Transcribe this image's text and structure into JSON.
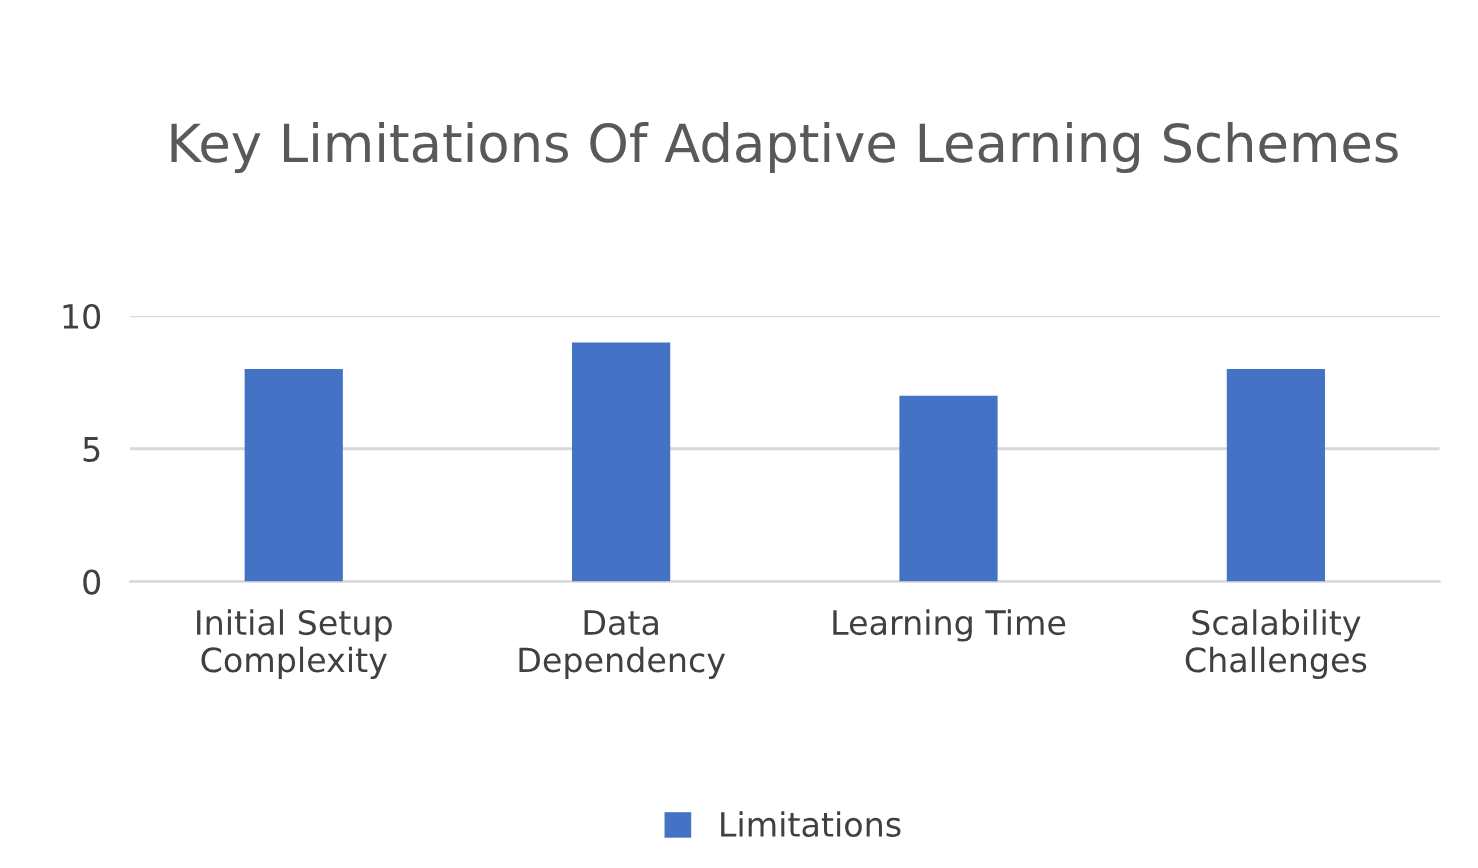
{
  "chart_data": {
    "type": "bar",
    "title": "Key Limitations Of Adaptive Learning Schemes",
    "categories": [
      "Initial Setup\nComplexity",
      "Data\nDependency",
      "Learning Time",
      "Scalability\nChallenges"
    ],
    "series": [
      {
        "name": "Limitations",
        "color": "#4472c4",
        "values": [
          8,
          9,
          7,
          8
        ]
      }
    ],
    "ylim": [
      0,
      10
    ],
    "yticks": [
      0,
      5,
      10
    ],
    "grid": "y",
    "legend": "bottom"
  }
}
